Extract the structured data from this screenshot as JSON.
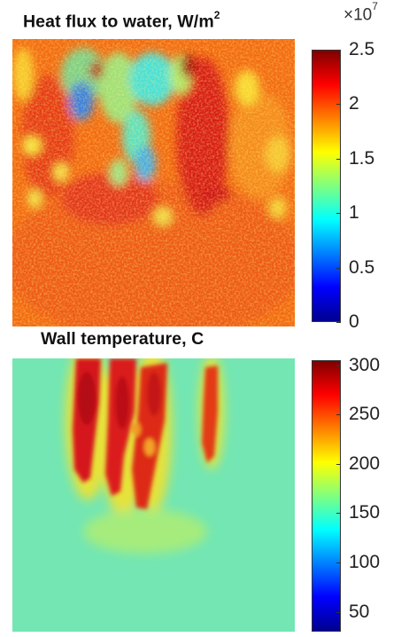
{
  "chart_data": [
    {
      "type": "heatmap",
      "title_prefix": "Heat flux to water, W/m",
      "title_sup": "2",
      "colorbar": {
        "min": 0,
        "max": 2.5,
        "ticks": [
          "0",
          "0.5",
          "1",
          "1.5",
          "2",
          "2.5"
        ],
        "tick_values": [
          0,
          0.5,
          1,
          1.5,
          2,
          2.5
        ],
        "exponent_prefix": "×10",
        "exponent_sup": "7",
        "colormap": "jet"
      }
    },
    {
      "type": "heatmap",
      "title": "Wall temperature, C",
      "colorbar": {
        "min": 30,
        "max": 305,
        "ticks": [
          "50",
          "100",
          "150",
          "200",
          "250",
          "300"
        ],
        "tick_values": [
          50,
          100,
          150,
          200,
          250,
          300
        ],
        "colormap": "jet"
      }
    }
  ]
}
